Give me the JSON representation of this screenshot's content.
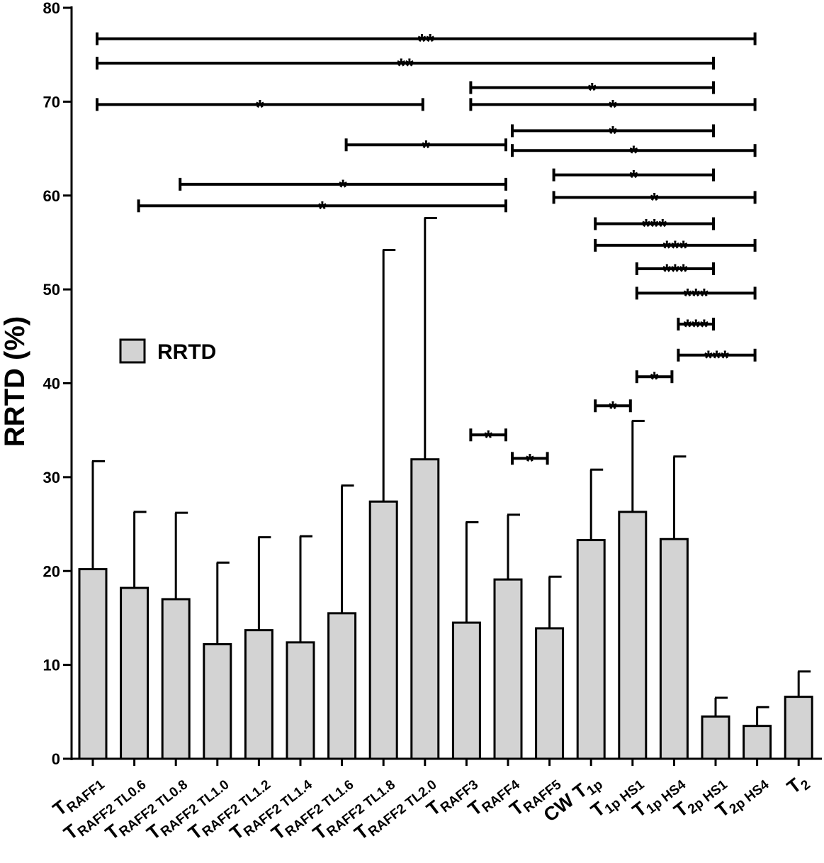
{
  "chart_data": {
    "type": "bar",
    "title": "",
    "ylabel": "RRTD (%)",
    "xlabel": "",
    "ylim": [
      0,
      80
    ],
    "yticks": [
      0,
      10,
      20,
      30,
      40,
      50,
      60,
      70,
      80
    ],
    "legend": {
      "label": "RRTD",
      "position": "left",
      "color": "#d3d3d3"
    },
    "categories": [
      {
        "main": "T",
        "sub": "RAFF1"
      },
      {
        "main": "T",
        "sub": "RAFF2 TL0.6"
      },
      {
        "main": "T",
        "sub": "RAFF2 TL0.8"
      },
      {
        "main": "T",
        "sub": "RAFF2 TL1.0"
      },
      {
        "main": "T",
        "sub": "RAFF2 TL1.2"
      },
      {
        "main": "T",
        "sub": "RAFF2 TL1.4"
      },
      {
        "main": "T",
        "sub": "RAFF2 TL1.6"
      },
      {
        "main": "T",
        "sub": "RAFF2 TL1.8"
      },
      {
        "main": "T",
        "sub": "RAFF2 TL2.0"
      },
      {
        "main": "T",
        "sub": "RAFF3"
      },
      {
        "main": "T",
        "sub": "RAFF4"
      },
      {
        "main": "T",
        "sub": "RAFF5"
      },
      {
        "main": "CW T",
        "sub": "1p"
      },
      {
        "main": "T",
        "sub": "1p HS1"
      },
      {
        "main": "T",
        "sub": "1p HS4"
      },
      {
        "main": "T",
        "sub": "2p HS1"
      },
      {
        "main": "T",
        "sub": "2p HS4"
      },
      {
        "main": "T",
        "sub": "2"
      }
    ],
    "series": [
      {
        "name": "RRTD",
        "values": [
          20.2,
          18.2,
          17.0,
          12.2,
          13.7,
          12.4,
          15.5,
          27.4,
          31.9,
          14.5,
          19.1,
          13.9,
          23.3,
          26.3,
          23.4,
          4.5,
          3.5,
          6.6
        ],
        "errors": [
          11.5,
          8.1,
          9.2,
          8.7,
          9.9,
          11.3,
          13.6,
          26.8,
          25.7,
          10.7,
          6.9,
          5.5,
          7.5,
          9.7,
          8.8,
          2.0,
          2.0,
          2.7
        ]
      }
    ],
    "significance": [
      {
        "from": 0,
        "to": 16,
        "y": 76.7,
        "label": "**"
      },
      {
        "from": 0,
        "to": 15,
        "y": 74.1,
        "label": "**"
      },
      {
        "from": 9,
        "to": 15,
        "y": 71.5,
        "label": "*"
      },
      {
        "from": 0,
        "to": 8,
        "y": 69.7,
        "label": "*"
      },
      {
        "from": 9,
        "to": 16,
        "y": 69.7,
        "label": "*"
      },
      {
        "from": 10,
        "to": 15,
        "y": 66.9,
        "label": "*"
      },
      {
        "from": 6,
        "to": 10,
        "y": 65.4,
        "label": "*"
      },
      {
        "from": 10,
        "to": 16,
        "y": 64.8,
        "label": "*"
      },
      {
        "from": 11,
        "to": 15,
        "y": 62.2,
        "label": "*"
      },
      {
        "from": 2,
        "to": 10,
        "y": 61.2,
        "label": "*"
      },
      {
        "from": 11,
        "to": 16,
        "y": 59.8,
        "label": "*"
      },
      {
        "from": 1,
        "to": 10,
        "y": 58.9,
        "label": "*"
      },
      {
        "from": 12,
        "to": 15,
        "y": 57.0,
        "label": "***"
      },
      {
        "from": 12,
        "to": 16,
        "y": 54.7,
        "label": "***"
      },
      {
        "from": 13,
        "to": 15,
        "y": 52.2,
        "label": "***"
      },
      {
        "from": 13,
        "to": 16,
        "y": 49.6,
        "label": "***"
      },
      {
        "from": 14,
        "to": 15,
        "y": 46.3,
        "label": "***"
      },
      {
        "from": 14,
        "to": 16,
        "y": 43.0,
        "label": "***"
      },
      {
        "from": 13,
        "to": 14,
        "y": 40.7,
        "label": "*"
      },
      {
        "from": 12,
        "to": 13,
        "y": 37.6,
        "label": "*"
      },
      {
        "from": 9,
        "to": 10,
        "y": 34.5,
        "label": "*"
      },
      {
        "from": 10,
        "to": 11,
        "y": 32.0,
        "label": "*"
      }
    ]
  }
}
